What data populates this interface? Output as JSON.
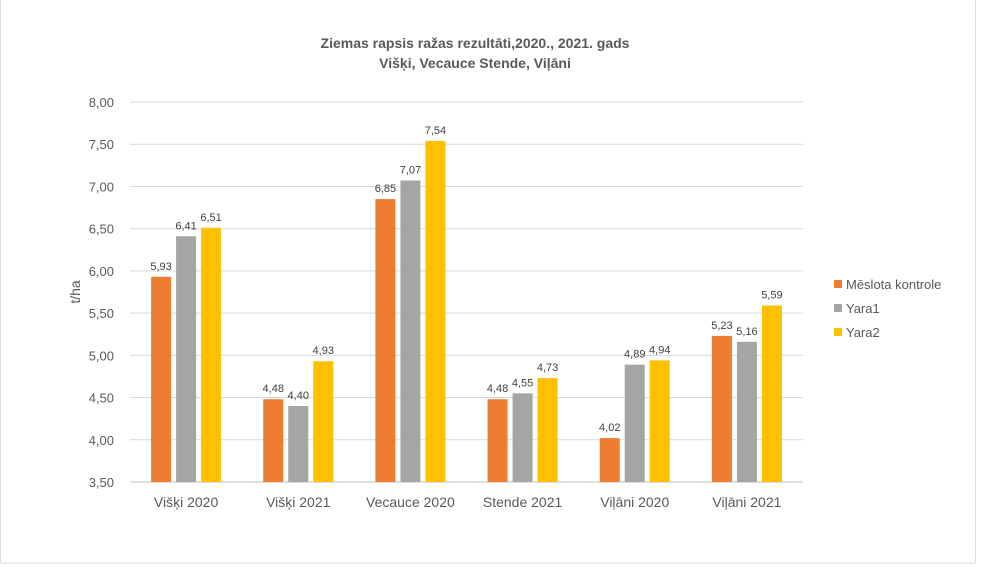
{
  "chart_data": {
    "type": "bar",
    "title": "Ziemas rapsis ražas rezultāti,2020., 2021. gads",
    "subtitle": "Višķi, Vecauce Stende, Viļāni",
    "xlabel": "",
    "ylabel": "t/ha",
    "ylim": [
      3.5,
      8.0
    ],
    "yticks": [
      "3,50",
      "4,00",
      "4,50",
      "5,00",
      "5,50",
      "6,00",
      "6,50",
      "7,00",
      "7,50",
      "8,00"
    ],
    "grid": true,
    "legend_position": "right",
    "categories": [
      "Višķi 2020",
      "Višķi 2021",
      "Vecauce 2020",
      "Stende 2021",
      "Viļāni 2020",
      "Viļāni 2021"
    ],
    "series": [
      {
        "name": "Mēslota kontrole",
        "color": "#ED7D31",
        "values": [
          5.93,
          4.48,
          6.85,
          4.48,
          4.02,
          5.23
        ],
        "labels": [
          "5,93",
          "4,48",
          "6,85",
          "4,48",
          "4,02",
          "5,23"
        ]
      },
      {
        "name": "Yara1",
        "color": "#A5A5A5",
        "values": [
          6.41,
          4.4,
          7.07,
          4.55,
          4.89,
          5.16
        ],
        "labels": [
          "6,41",
          "4,40",
          "7,07",
          "4,55",
          "4,89",
          "5,16"
        ]
      },
      {
        "name": "Yara2",
        "color": "#FFC000",
        "values": [
          6.51,
          4.93,
          7.54,
          4.73,
          4.94,
          5.59
        ],
        "labels": [
          "6,51",
          "4,93",
          "7,54",
          "4,73",
          "4,94",
          "5,59"
        ]
      }
    ]
  }
}
